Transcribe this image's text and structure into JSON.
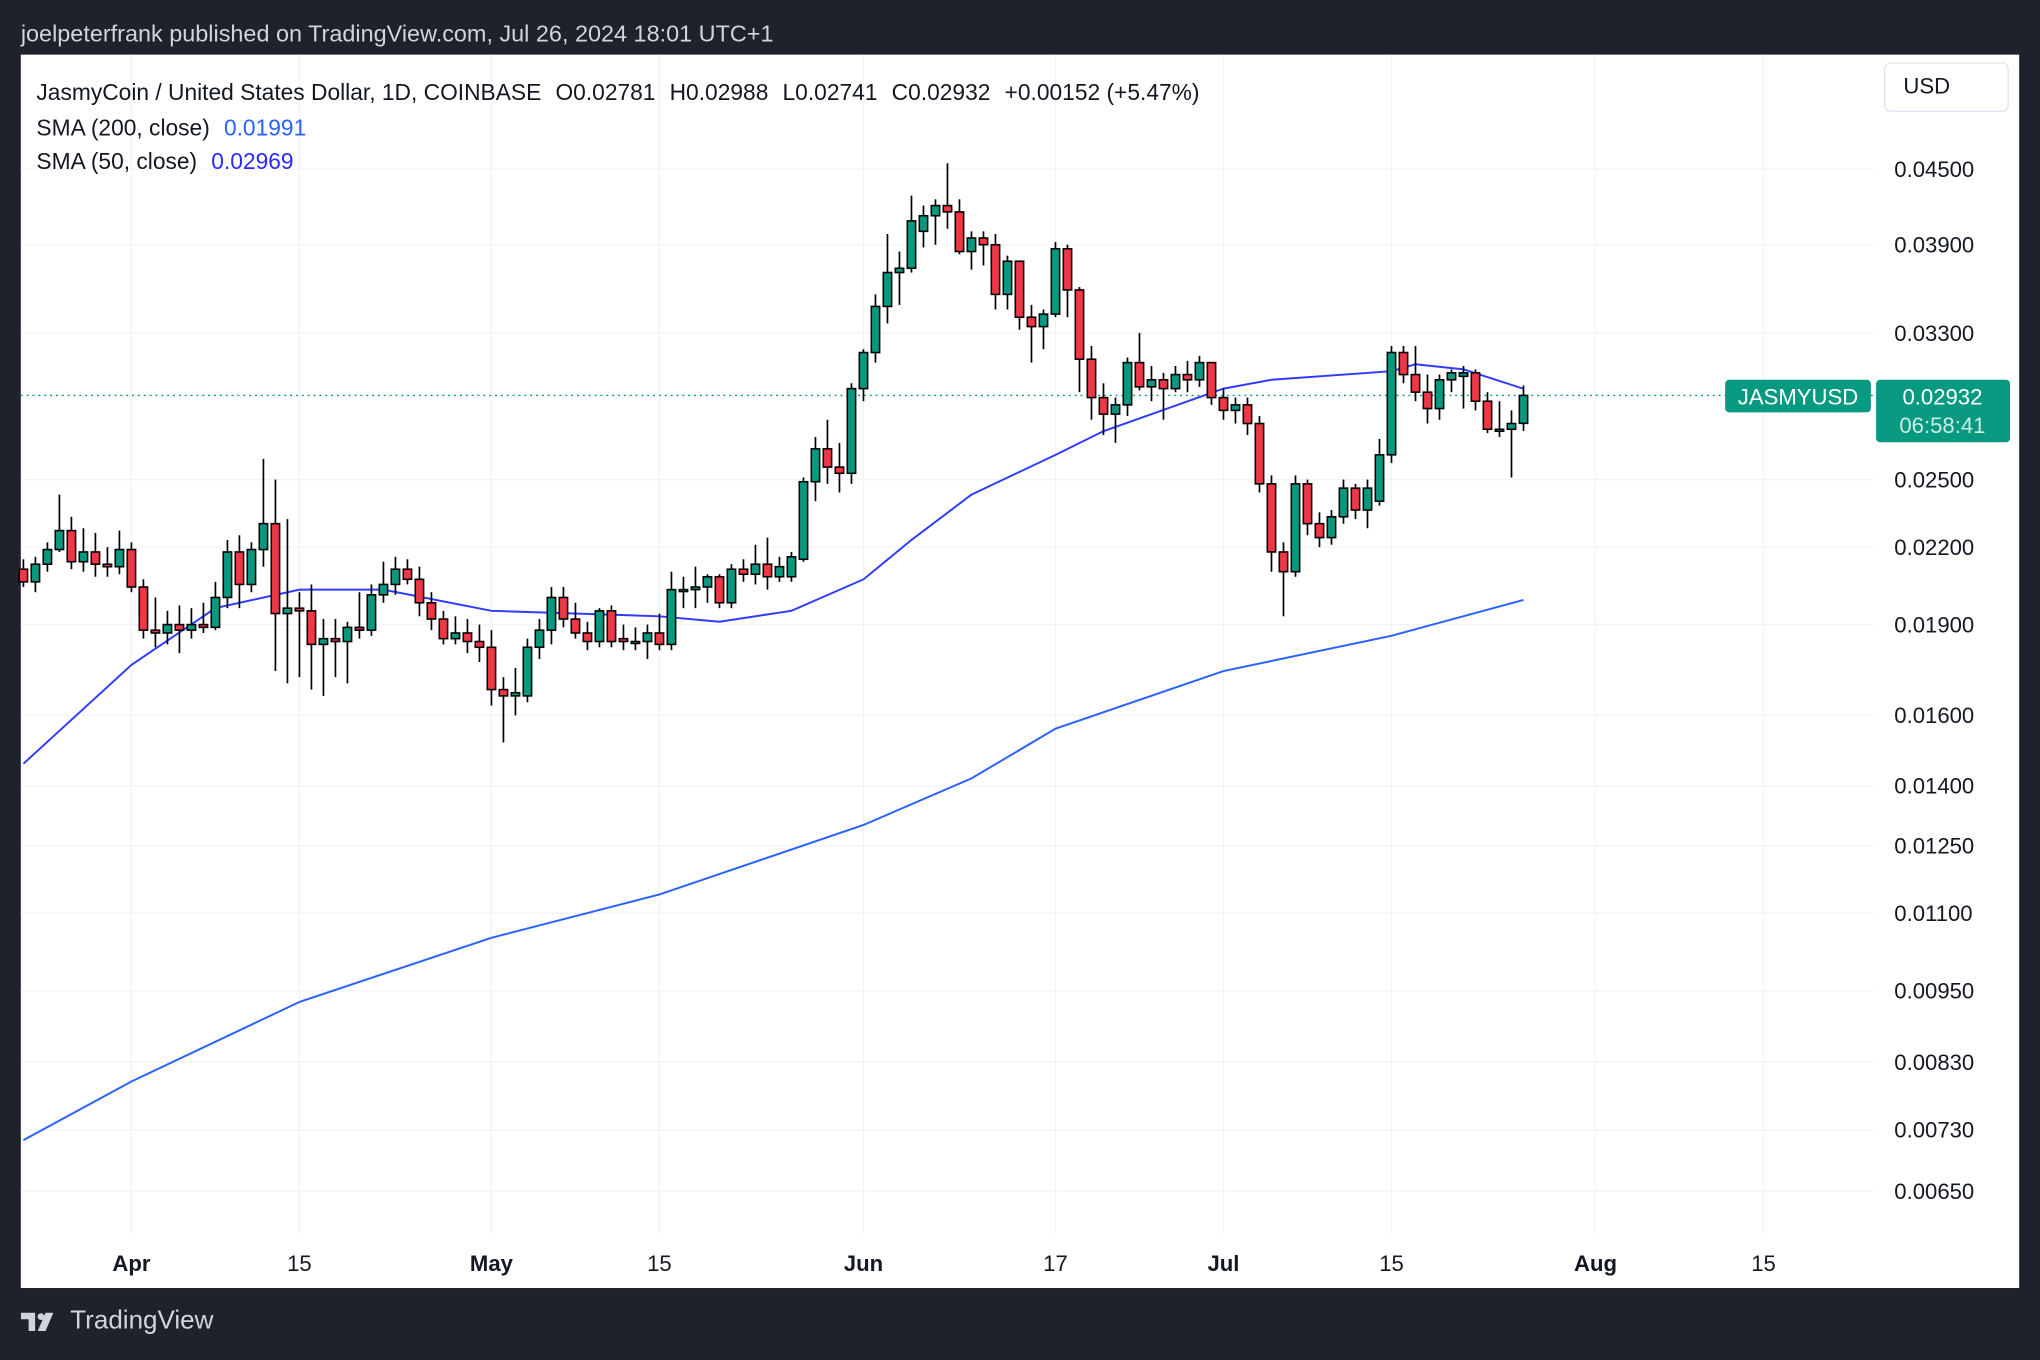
{
  "header": {
    "published": "joelpeterfrank published on TradingView.com, Jul 26, 2024 18:01 UTC+1"
  },
  "legend": {
    "symbol_line": "JasmyCoin / United States Dollar, 1D, COINBASE",
    "open": "O0.02781",
    "high": "H0.02988",
    "low": "L0.02741",
    "close": "C0.02932",
    "change": "+0.00152 (+5.47%)",
    "sma200_label": "SMA (200, close)",
    "sma200_value": "0.01991",
    "sma50_label": "SMA (50, close)",
    "sma50_value": "0.02969"
  },
  "currency_button": "USD",
  "price_tag": {
    "symbol": "JASMYUSD",
    "price": "0.02932",
    "countdown": "06:58:41"
  },
  "footer": {
    "brand": "TradingView",
    "logo_icon": "tradingview-logo-icon"
  },
  "colors": {
    "up": "#089981",
    "down": "#f23645",
    "sma": "#2f3cff",
    "tag": "#089981",
    "background": "#1e222d"
  },
  "chart_data": {
    "type": "candlestick",
    "y_scale": "log",
    "grid": true,
    "ylim": [
      0.0062,
      0.047
    ],
    "y_ticks": [
      "0.04500",
      "0.03900",
      "0.03300",
      "0.02500",
      "0.02200",
      "0.01900",
      "0.01600",
      "0.01400",
      "0.01250",
      "0.01100",
      "0.00950",
      "0.00830",
      "0.00730",
      "0.00650"
    ],
    "x_ticks": [
      [
        "2024-04-01",
        "Apr"
      ],
      [
        "2024-04-15",
        "15"
      ],
      [
        "2024-05-01",
        "May"
      ],
      [
        "2024-05-15",
        "15"
      ],
      [
        "2024-06-01",
        "Jun"
      ],
      [
        "2024-06-17",
        "17"
      ],
      [
        "2024-07-01",
        "Jul"
      ],
      [
        "2024-07-15",
        "15"
      ],
      [
        "2024-08-01",
        "Aug"
      ],
      [
        "2024-08-15",
        "15"
      ]
    ],
    "x_range": [
      "2024-03-23",
      "2024-08-31"
    ],
    "last_price": 0.02932,
    "candles": [
      [
        "2024-03-23",
        0.0211,
        0.0215,
        0.0204,
        0.0206
      ],
      [
        "2024-03-24",
        0.0206,
        0.0216,
        0.0202,
        0.0213
      ],
      [
        "2024-03-25",
        0.0213,
        0.0222,
        0.021,
        0.0219
      ],
      [
        "2024-03-26",
        0.0219,
        0.0243,
        0.0218,
        0.0227
      ],
      [
        "2024-03-27",
        0.0227,
        0.0233,
        0.0211,
        0.0214
      ],
      [
        "2024-03-28",
        0.0214,
        0.0228,
        0.021,
        0.0218
      ],
      [
        "2024-03-29",
        0.0218,
        0.0226,
        0.0208,
        0.0213
      ],
      [
        "2024-03-30",
        0.0213,
        0.022,
        0.0208,
        0.0212
      ],
      [
        "2024-03-31",
        0.0212,
        0.0227,
        0.0209,
        0.0219
      ],
      [
        "2024-04-01",
        0.0219,
        0.0222,
        0.0202,
        0.0204
      ],
      [
        "2024-04-02",
        0.0204,
        0.0207,
        0.0185,
        0.0188
      ],
      [
        "2024-04-03",
        0.0188,
        0.02,
        0.0182,
        0.0187
      ],
      [
        "2024-04-04",
        0.0187,
        0.0195,
        0.0183,
        0.019
      ],
      [
        "2024-04-05",
        0.019,
        0.0197,
        0.018,
        0.0188
      ],
      [
        "2024-04-06",
        0.0188,
        0.0196,
        0.0185,
        0.019
      ],
      [
        "2024-04-07",
        0.019,
        0.0198,
        0.0187,
        0.0189
      ],
      [
        "2024-04-08",
        0.0189,
        0.0206,
        0.0188,
        0.02
      ],
      [
        "2024-04-09",
        0.02,
        0.0223,
        0.0196,
        0.0218
      ],
      [
        "2024-04-10",
        0.0218,
        0.0225,
        0.0196,
        0.0205
      ],
      [
        "2024-04-11",
        0.0205,
        0.0222,
        0.0202,
        0.0219
      ],
      [
        "2024-04-12",
        0.0219,
        0.026,
        0.0212,
        0.023
      ],
      [
        "2024-04-13",
        0.023,
        0.025,
        0.0174,
        0.0194
      ],
      [
        "2024-04-14",
        0.0194,
        0.0232,
        0.017,
        0.0196
      ],
      [
        "2024-04-15",
        0.0196,
        0.0202,
        0.0172,
        0.0195
      ],
      [
        "2024-04-16",
        0.0195,
        0.0205,
        0.0168,
        0.0183
      ],
      [
        "2024-04-17",
        0.0183,
        0.0192,
        0.0166,
        0.0185
      ],
      [
        "2024-04-18",
        0.0185,
        0.0192,
        0.0172,
        0.0184
      ],
      [
        "2024-04-19",
        0.0184,
        0.0191,
        0.017,
        0.0189
      ],
      [
        "2024-04-20",
        0.0189,
        0.0202,
        0.0185,
        0.0188
      ],
      [
        "2024-04-21",
        0.0188,
        0.0205,
        0.0186,
        0.0201
      ],
      [
        "2024-04-22",
        0.0201,
        0.0214,
        0.0198,
        0.0205
      ],
      [
        "2024-04-23",
        0.0205,
        0.0216,
        0.0201,
        0.0211
      ],
      [
        "2024-04-24",
        0.0211,
        0.0215,
        0.0205,
        0.0207
      ],
      [
        "2024-04-25",
        0.0207,
        0.0212,
        0.0193,
        0.0198
      ],
      [
        "2024-04-26",
        0.0198,
        0.0202,
        0.0188,
        0.0192
      ],
      [
        "2024-04-27",
        0.0192,
        0.0195,
        0.0183,
        0.0185
      ],
      [
        "2024-04-28",
        0.0185,
        0.0193,
        0.0183,
        0.0187
      ],
      [
        "2024-04-29",
        0.0187,
        0.0192,
        0.018,
        0.0184
      ],
      [
        "2024-04-30",
        0.0184,
        0.019,
        0.0177,
        0.0182
      ],
      [
        "2024-05-01",
        0.0182,
        0.0188,
        0.0163,
        0.0168
      ],
      [
        "2024-05-02",
        0.0168,
        0.0172,
        0.0152,
        0.0166
      ],
      [
        "2024-05-03",
        0.0166,
        0.0175,
        0.016,
        0.0167
      ],
      [
        "2024-05-04",
        0.0166,
        0.0185,
        0.0164,
        0.0182
      ],
      [
        "2024-05-05",
        0.0182,
        0.0192,
        0.0178,
        0.0188
      ],
      [
        "2024-05-06",
        0.0188,
        0.0204,
        0.0183,
        0.02
      ],
      [
        "2024-05-07",
        0.02,
        0.0204,
        0.0189,
        0.0192
      ],
      [
        "2024-05-08",
        0.0192,
        0.0198,
        0.0185,
        0.0187
      ],
      [
        "2024-05-09",
        0.0187,
        0.0191,
        0.0181,
        0.0184
      ],
      [
        "2024-05-10",
        0.0184,
        0.0196,
        0.0182,
        0.0195
      ],
      [
        "2024-05-11",
        0.0195,
        0.0197,
        0.0182,
        0.0184
      ],
      [
        "2024-05-12",
        0.0185,
        0.019,
        0.0181,
        0.0184
      ],
      [
        "2024-05-13",
        0.0184,
        0.0189,
        0.0181,
        0.0184
      ],
      [
        "2024-05-14",
        0.0184,
        0.019,
        0.0178,
        0.0187
      ],
      [
        "2024-05-15",
        0.0187,
        0.0194,
        0.0181,
        0.0183
      ],
      [
        "2024-05-16",
        0.0183,
        0.021,
        0.0181,
        0.0203
      ],
      [
        "2024-05-17",
        0.0203,
        0.0208,
        0.0196,
        0.0203
      ],
      [
        "2024-05-18",
        0.0203,
        0.0212,
        0.0196,
        0.0204
      ],
      [
        "2024-05-19",
        0.0204,
        0.0209,
        0.0198,
        0.0208
      ],
      [
        "2024-05-20",
        0.0208,
        0.0209,
        0.0196,
        0.0198
      ],
      [
        "2024-05-21",
        0.0198,
        0.0213,
        0.0196,
        0.0211
      ],
      [
        "2024-05-22",
        0.0211,
        0.0215,
        0.0206,
        0.0209
      ],
      [
        "2024-05-23",
        0.0209,
        0.0221,
        0.0205,
        0.0213
      ],
      [
        "2024-05-24",
        0.0213,
        0.0224,
        0.0203,
        0.0208
      ],
      [
        "2024-05-25",
        0.0208,
        0.0216,
        0.0206,
        0.0212
      ],
      [
        "2024-05-26",
        0.0208,
        0.0218,
        0.0206,
        0.0216
      ],
      [
        "2024-05-27",
        0.0215,
        0.0251,
        0.0214,
        0.0249
      ],
      [
        "2024-05-28",
        0.0249,
        0.0271,
        0.024,
        0.0265
      ],
      [
        "2024-05-29",
        0.0265,
        0.028,
        0.0248,
        0.0256
      ],
      [
        "2024-05-30",
        0.0256,
        0.0268,
        0.0244,
        0.0253
      ],
      [
        "2024-05-31",
        0.0253,
        0.03,
        0.0248,
        0.0297
      ],
      [
        "2024-06-01",
        0.0297,
        0.032,
        0.029,
        0.0318
      ],
      [
        "2024-06-02",
        0.0318,
        0.0355,
        0.0312,
        0.0347
      ],
      [
        "2024-06-03",
        0.0347,
        0.0398,
        0.0336,
        0.037
      ],
      [
        "2024-06-04",
        0.037,
        0.0385,
        0.0348,
        0.0373
      ],
      [
        "2024-06-05",
        0.0373,
        0.0428,
        0.037,
        0.0408
      ],
      [
        "2024-06-06",
        0.04,
        0.042,
        0.0388,
        0.0412
      ],
      [
        "2024-06-07",
        0.0412,
        0.0425,
        0.039,
        0.042
      ],
      [
        "2024-06-08",
        0.042,
        0.0455,
        0.0402,
        0.0415
      ],
      [
        "2024-06-09",
        0.0415,
        0.0425,
        0.0383,
        0.0385
      ],
      [
        "2024-06-10",
        0.0385,
        0.04,
        0.0372,
        0.0395
      ],
      [
        "2024-06-11",
        0.0395,
        0.04,
        0.0375,
        0.039
      ],
      [
        "2024-06-12",
        0.039,
        0.0398,
        0.0345,
        0.0355
      ],
      [
        "2024-06-13",
        0.0355,
        0.0382,
        0.0345,
        0.0378
      ],
      [
        "2024-06-14",
        0.0378,
        0.0378,
        0.0332,
        0.034
      ],
      [
        "2024-06-15",
        0.034,
        0.0348,
        0.0312,
        0.0334
      ],
      [
        "2024-06-16",
        0.0334,
        0.0345,
        0.032,
        0.0342
      ],
      [
        "2024-06-17",
        0.0342,
        0.0392,
        0.034,
        0.0387
      ],
      [
        "2024-06-18",
        0.0387,
        0.039,
        0.034,
        0.0358
      ],
      [
        "2024-06-19",
        0.0358,
        0.036,
        0.0295,
        0.0314
      ],
      [
        "2024-06-20",
        0.0314,
        0.0322,
        0.028,
        0.0292
      ],
      [
        "2024-06-21",
        0.0292,
        0.03,
        0.0272,
        0.0283
      ],
      [
        "2024-06-22",
        0.0283,
        0.0292,
        0.0268,
        0.0288
      ],
      [
        "2024-06-23",
        0.0288,
        0.0315,
        0.0282,
        0.0312
      ],
      [
        "2024-06-24",
        0.0312,
        0.033,
        0.0296,
        0.0298
      ],
      [
        "2024-06-25",
        0.0298,
        0.031,
        0.029,
        0.0302
      ],
      [
        "2024-06-26",
        0.0302,
        0.0306,
        0.028,
        0.0297
      ],
      [
        "2024-06-27",
        0.0297,
        0.031,
        0.0295,
        0.0305
      ],
      [
        "2024-06-28",
        0.0305,
        0.0313,
        0.0295,
        0.0302
      ],
      [
        "2024-06-29",
        0.0302,
        0.0316,
        0.0298,
        0.0312
      ],
      [
        "2024-06-30",
        0.0312,
        0.0312,
        0.0288,
        0.0292
      ],
      [
        "2024-07-01",
        0.0292,
        0.0297,
        0.028,
        0.0285
      ],
      [
        "2024-07-02",
        0.0285,
        0.0292,
        0.0278,
        0.0288
      ],
      [
        "2024-07-03",
        0.0288,
        0.0292,
        0.0272,
        0.0278
      ],
      [
        "2024-07-04",
        0.0278,
        0.0282,
        0.0244,
        0.0248
      ],
      [
        "2024-07-05",
        0.0248,
        0.0252,
        0.021,
        0.0218
      ],
      [
        "2024-07-06",
        0.0218,
        0.0222,
        0.0193,
        0.021
      ],
      [
        "2024-07-07",
        0.021,
        0.0252,
        0.0208,
        0.0248
      ],
      [
        "2024-07-08",
        0.0248,
        0.025,
        0.0225,
        0.023
      ],
      [
        "2024-07-09",
        0.023,
        0.0235,
        0.022,
        0.0224
      ],
      [
        "2024-07-10",
        0.0224,
        0.0236,
        0.0221,
        0.0233
      ],
      [
        "2024-07-11",
        0.0233,
        0.025,
        0.023,
        0.0246
      ],
      [
        "2024-07-12",
        0.0246,
        0.0248,
        0.0232,
        0.0236
      ],
      [
        "2024-07-13",
        0.0236,
        0.025,
        0.0228,
        0.0246
      ],
      [
        "2024-07-14",
        0.024,
        0.027,
        0.0238,
        0.0262
      ],
      [
        "2024-07-15",
        0.0262,
        0.0322,
        0.0258,
        0.0318
      ],
      [
        "2024-07-16",
        0.0318,
        0.0322,
        0.03,
        0.0305
      ],
      [
        "2024-07-17",
        0.0305,
        0.0322,
        0.029,
        0.0295
      ],
      [
        "2024-07-18",
        0.0295,
        0.0305,
        0.0278,
        0.0286
      ],
      [
        "2024-07-19",
        0.0286,
        0.0305,
        0.028,
        0.0302
      ],
      [
        "2024-07-20",
        0.0302,
        0.0308,
        0.0295,
        0.0306
      ],
      [
        "2024-07-21",
        0.0304,
        0.031,
        0.0286,
        0.0306
      ],
      [
        "2024-07-22",
        0.0306,
        0.0308,
        0.0285,
        0.029
      ],
      [
        "2024-07-23",
        0.029,
        0.0295,
        0.0273,
        0.0275
      ],
      [
        "2024-07-24",
        0.0275,
        0.029,
        0.0271,
        0.0275
      ],
      [
        "2024-07-25",
        0.0275,
        0.0285,
        0.0251,
        0.0278
      ],
      [
        "2024-07-26",
        0.02781,
        0.02988,
        0.02741,
        0.02932
      ]
    ],
    "series": [
      {
        "name": "SMA (200, close)",
        "points": [
          [
            "2024-03-23",
            0.00716
          ],
          [
            "2024-04-01",
            0.008
          ],
          [
            "2024-04-15",
            0.0093
          ],
          [
            "2024-05-01",
            0.0105
          ],
          [
            "2024-05-15",
            0.0114
          ],
          [
            "2024-06-01",
            0.013
          ],
          [
            "2024-06-10",
            0.0142
          ],
          [
            "2024-06-17",
            0.0156
          ],
          [
            "2024-07-01",
            0.0174
          ],
          [
            "2024-07-15",
            0.0186
          ],
          [
            "2024-07-26",
            0.01991
          ]
        ]
      },
      {
        "name": "SMA (50, close)",
        "points": [
          [
            "2024-03-23",
            0.0146
          ],
          [
            "2024-04-01",
            0.0176
          ],
          [
            "2024-04-08",
            0.0196
          ],
          [
            "2024-04-15",
            0.0203
          ],
          [
            "2024-04-22",
            0.0203
          ],
          [
            "2024-05-01",
            0.0195
          ],
          [
            "2024-05-15",
            0.0193
          ],
          [
            "2024-05-20",
            0.0191
          ],
          [
            "2024-05-26",
            0.0195
          ],
          [
            "2024-06-01",
            0.0207
          ],
          [
            "2024-06-05",
            0.0223
          ],
          [
            "2024-06-10",
            0.0243
          ],
          [
            "2024-06-17",
            0.0262
          ],
          [
            "2024-06-21",
            0.0274
          ],
          [
            "2024-07-01",
            0.0297
          ],
          [
            "2024-07-05",
            0.0302
          ],
          [
            "2024-07-15",
            0.0307
          ],
          [
            "2024-07-17",
            0.0311
          ],
          [
            "2024-07-21",
            0.0308
          ],
          [
            "2024-07-26",
            0.02969
          ]
        ]
      }
    ]
  }
}
